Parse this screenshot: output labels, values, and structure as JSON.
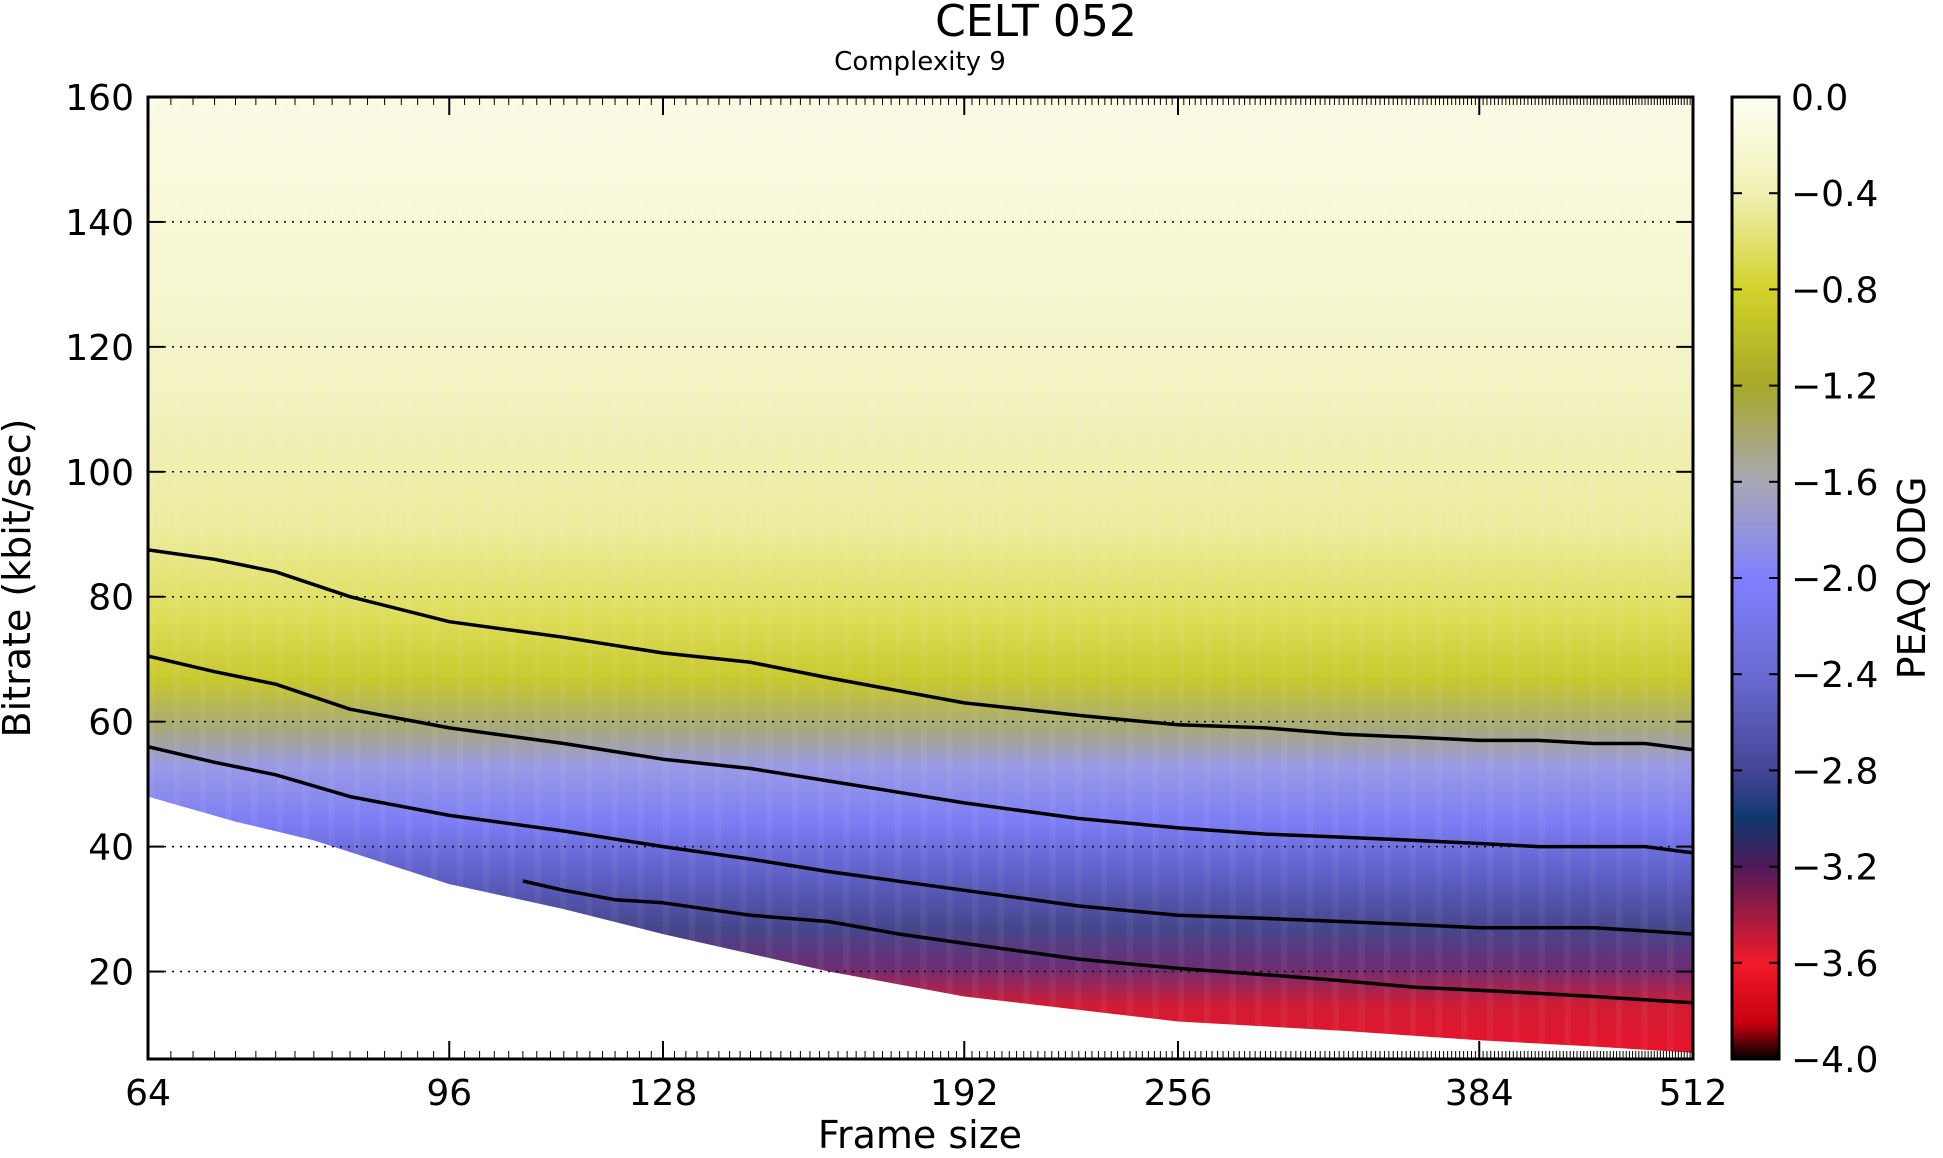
{
  "chart_data": {
    "type": "heatmap",
    "title": "CELT 052",
    "subtitle": "Complexity 9",
    "xlabel": "Frame size",
    "ylabel": "Bitrate (kbit/sec)",
    "x_scale": "log2",
    "xlim": [
      64,
      512
    ],
    "ylim": [
      6,
      160
    ],
    "x_ticks": [
      "64",
      "96",
      "128",
      "192",
      "256",
      "384",
      "512"
    ],
    "y_ticks": [
      "20",
      "40",
      "60",
      "80",
      "100",
      "120",
      "140",
      "160"
    ],
    "y_grid": "dotted",
    "colorbar": {
      "label": "PEAQ ODG",
      "range": [
        -4.0,
        0.0
      ],
      "ticks": [
        "0.0",
        "−0.4",
        "−0.8",
        "−1.2",
        "−1.6",
        "−2.0",
        "−2.4",
        "−2.8",
        "−3.2",
        "−3.6",
        "−4.0"
      ],
      "color_stops": [
        {
          "value": 0.0,
          "color": "#fffff5"
        },
        {
          "value": -0.4,
          "color": "#f0f0b4"
        },
        {
          "value": -0.8,
          "color": "#d2d22a"
        },
        {
          "value": -1.2,
          "color": "#a8a82a"
        },
        {
          "value": -1.6,
          "color": "#a8a8b4"
        },
        {
          "value": -2.0,
          "color": "#8080ff"
        },
        {
          "value": -2.4,
          "color": "#6a6ad2"
        },
        {
          "value": -2.8,
          "color": "#464696"
        },
        {
          "value": -3.0,
          "color": "#10386e"
        },
        {
          "value": -3.2,
          "color": "#501a5a"
        },
        {
          "value": -3.6,
          "color": "#f01a2a"
        },
        {
          "value": -3.85,
          "color": "#c80010"
        },
        {
          "value": -4.0,
          "color": "#000000"
        }
      ]
    },
    "data_boundary": {
      "x": [
        64,
        72,
        80,
        96,
        112,
        128,
        160,
        192,
        256,
        320,
        384,
        448,
        512
      ],
      "min_bitrate": [
        48,
        44,
        41,
        34,
        30,
        26,
        20,
        16,
        12,
        10.5,
        9,
        8,
        7
      ]
    },
    "series": [
      {
        "x": [
          64,
          70,
          76,
          84,
          96,
          112,
          128,
          144,
          160,
          192,
          224,
          256,
          288,
          320,
          352,
          384,
          416,
          448,
          480,
          512
        ],
        "y": [
          87.5,
          86,
          84,
          80,
          76,
          73.5,
          71,
          69.5,
          67,
          63,
          61,
          59.5,
          59,
          58,
          57.5,
          57,
          57,
          56.5,
          56.5,
          55.5
        ]
      },
      {
        "x": [
          64,
          70,
          76,
          84,
          96,
          112,
          128,
          144,
          160,
          192,
          224,
          256,
          288,
          320,
          352,
          384,
          416,
          448,
          480,
          512
        ],
        "y": [
          70.5,
          68,
          66,
          62,
          59,
          56.5,
          54,
          52.5,
          50.5,
          47,
          44.5,
          43,
          42,
          41.5,
          41,
          40.5,
          40,
          40,
          40,
          39
        ]
      },
      {
        "x": [
          64,
          70,
          76,
          84,
          96,
          112,
          128,
          144,
          160,
          192,
          224,
          256,
          288,
          320,
          352,
          384,
          416,
          448,
          480,
          512
        ],
        "y": [
          56,
          53.5,
          51.5,
          48,
          45,
          42.5,
          40,
          38,
          36,
          33,
          30.5,
          29,
          28.5,
          28,
          27.5,
          27,
          27,
          27,
          26.5,
          26
        ]
      },
      {
        "x": [
          106,
          112,
          120,
          128,
          144,
          160,
          176,
          192,
          224,
          256,
          288,
          320,
          352,
          384,
          416,
          448,
          480,
          512
        ],
        "y": [
          34.5,
          33,
          31.5,
          31,
          29,
          28,
          26,
          24.5,
          22,
          20.5,
          19.5,
          18.5,
          17.5,
          17,
          16.5,
          16,
          15.5,
          15
        ]
      }
    ]
  }
}
